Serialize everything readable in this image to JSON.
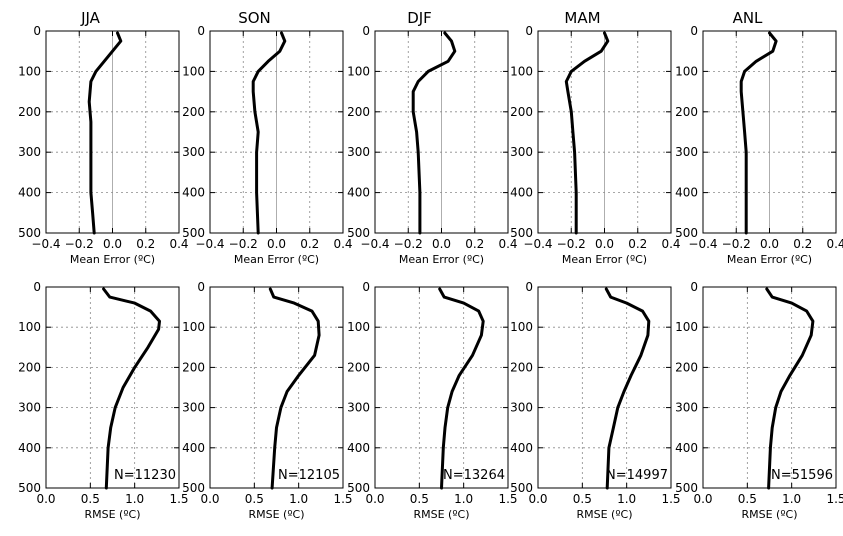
{
  "chart_data": [
    {
      "type": "line",
      "title": "JJA",
      "xlabel": "Mean Error (ºC)",
      "xlim": [
        -0.4,
        0.4
      ],
      "ylim": [
        0,
        500
      ],
      "y_inverted": true,
      "xticks": [
        "−0.4",
        "−0.2",
        "0.0",
        "0.2",
        "0.4"
      ],
      "yticks": [
        "0",
        "100",
        "200",
        "300",
        "400",
        "500"
      ],
      "grid": true,
      "series": [
        {
          "x": [
            0.03,
            0.05,
            0.0,
            -0.05,
            -0.1,
            -0.13,
            -0.14,
            -0.13,
            -0.13,
            -0.13,
            -0.12,
            -0.11
          ],
          "y": [
            5,
            25,
            50,
            75,
            100,
            125,
            175,
            225,
            300,
            400,
            450,
            500
          ]
        }
      ]
    },
    {
      "type": "line",
      "title": "SON",
      "xlabel": "Mean Error (ºC)",
      "xlim": [
        -0.4,
        0.4
      ],
      "ylim": [
        0,
        500
      ],
      "y_inverted": true,
      "xticks": [
        "−0.4",
        "−0.2",
        "0.0",
        "0.2",
        "0.4"
      ],
      "yticks": [
        "0",
        "100",
        "200",
        "300",
        "400",
        "500"
      ],
      "grid": true,
      "series": [
        {
          "x": [
            0.03,
            0.05,
            0.02,
            -0.05,
            -0.11,
            -0.14,
            -0.14,
            -0.13,
            -0.11,
            -0.12,
            -0.12,
            -0.11
          ],
          "y": [
            5,
            25,
            50,
            75,
            100,
            125,
            150,
            200,
            250,
            300,
            400,
            500
          ]
        }
      ]
    },
    {
      "type": "line",
      "title": "DJF",
      "xlabel": "Mean Error (ºC)",
      "xlim": [
        -0.4,
        0.4
      ],
      "ylim": [
        0,
        500
      ],
      "y_inverted": true,
      "xticks": [
        "−0.4",
        "−0.2",
        "0.0",
        "0.2",
        "0.4"
      ],
      "yticks": [
        "0",
        "100",
        "200",
        "300",
        "400",
        "500"
      ],
      "grid": true,
      "series": [
        {
          "x": [
            0.02,
            0.06,
            0.08,
            0.04,
            -0.08,
            -0.14,
            -0.17,
            -0.17,
            -0.15,
            -0.14,
            -0.13,
            -0.13
          ],
          "y": [
            5,
            25,
            50,
            75,
            100,
            125,
            150,
            200,
            250,
            300,
            400,
            500
          ]
        }
      ]
    },
    {
      "type": "line",
      "title": "MAM",
      "xlabel": "Mean Error (ºC)",
      "xlim": [
        -0.4,
        0.4
      ],
      "ylim": [
        0,
        500
      ],
      "y_inverted": true,
      "xticks": [
        "−0.4",
        "−0.2",
        "0.0",
        "0.2",
        "0.4"
      ],
      "yticks": [
        "0",
        "100",
        "200",
        "300",
        "400",
        "500"
      ],
      "grid": true,
      "series": [
        {
          "x": [
            0.0,
            0.02,
            -0.02,
            -0.12,
            -0.2,
            -0.23,
            -0.22,
            -0.2,
            -0.19,
            -0.18,
            -0.17,
            -0.17
          ],
          "y": [
            5,
            25,
            50,
            75,
            100,
            125,
            150,
            200,
            250,
            300,
            400,
            500
          ]
        }
      ]
    },
    {
      "type": "line",
      "title": "ANL",
      "xlabel": "Mean Error (ºC)",
      "xlim": [
        -0.4,
        0.4
      ],
      "ylim": [
        0,
        500
      ],
      "y_inverted": true,
      "xticks": [
        "−0.4",
        "−0.2",
        "0.0",
        "0.2",
        "0.4"
      ],
      "yticks": [
        "0",
        "100",
        "200",
        "300",
        "400",
        "500"
      ],
      "grid": true,
      "series": [
        {
          "x": [
            0.0,
            0.04,
            0.02,
            -0.08,
            -0.15,
            -0.17,
            -0.17,
            -0.16,
            -0.15,
            -0.14,
            -0.14,
            -0.14
          ],
          "y": [
            5,
            25,
            50,
            75,
            100,
            125,
            150,
            200,
            250,
            300,
            400,
            500
          ]
        }
      ]
    },
    {
      "type": "line",
      "title": "",
      "xlabel": "RMSE (ºC)",
      "xlim": [
        0.0,
        1.5
      ],
      "ylim": [
        0,
        500
      ],
      "y_inverted": true,
      "xticks": [
        "0.0",
        "0.5",
        "1.0",
        "1.5"
      ],
      "yticks": [
        "0",
        "100",
        "200",
        "300",
        "400",
        "500"
      ],
      "annotation": "N=11230",
      "grid": true,
      "series": [
        {
          "x": [
            0.65,
            0.72,
            1.0,
            1.18,
            1.28,
            1.27,
            1.15,
            1.0,
            0.87,
            0.78,
            0.73,
            0.7,
            0.68
          ],
          "y": [
            5,
            25,
            40,
            60,
            85,
            105,
            150,
            200,
            250,
            300,
            350,
            400,
            500
          ]
        }
      ]
    },
    {
      "type": "line",
      "title": "",
      "xlabel": "RMSE (ºC)",
      "xlim": [
        0.0,
        1.5
      ],
      "ylim": [
        0,
        500
      ],
      "y_inverted": true,
      "xticks": [
        "0.0",
        "0.5",
        "1.0",
        "1.5"
      ],
      "yticks": [
        "0",
        "100",
        "200",
        "300",
        "400",
        "500"
      ],
      "annotation": "N=12105",
      "grid": true,
      "series": [
        {
          "x": [
            0.68,
            0.72,
            0.95,
            1.15,
            1.22,
            1.23,
            1.18,
            1.0,
            0.87,
            0.8,
            0.75,
            0.73,
            0.7
          ],
          "y": [
            5,
            25,
            40,
            60,
            85,
            120,
            170,
            220,
            260,
            300,
            350,
            400,
            500
          ]
        }
      ]
    },
    {
      "type": "line",
      "title": "",
      "xlabel": "RMSE (ºC)",
      "xlim": [
        0.0,
        1.5
      ],
      "ylim": [
        0,
        500
      ],
      "y_inverted": true,
      "xticks": [
        "0.0",
        "0.5",
        "1.0",
        "1.5"
      ],
      "yticks": [
        "0",
        "100",
        "200",
        "300",
        "400",
        "500"
      ],
      "annotation": "N=13264",
      "grid": true,
      "series": [
        {
          "x": [
            0.73,
            0.78,
            1.0,
            1.17,
            1.22,
            1.2,
            1.1,
            0.95,
            0.87,
            0.82,
            0.79,
            0.77,
            0.75
          ],
          "y": [
            5,
            25,
            40,
            60,
            85,
            120,
            170,
            220,
            260,
            300,
            350,
            400,
            500
          ]
        }
      ]
    },
    {
      "type": "line",
      "title": "",
      "xlabel": "RMSE (ºC)",
      "xlim": [
        0.0,
        1.5
      ],
      "ylim": [
        0,
        500
      ],
      "y_inverted": true,
      "xticks": [
        "0.0",
        "0.5",
        "1.0",
        "1.5"
      ],
      "yticks": [
        "0",
        "100",
        "200",
        "300",
        "400",
        "500"
      ],
      "annotation": "N=14997",
      "grid": true,
      "series": [
        {
          "x": [
            0.77,
            0.82,
            1.0,
            1.18,
            1.25,
            1.24,
            1.16,
            1.05,
            0.97,
            0.9,
            0.85,
            0.8,
            0.78
          ],
          "y": [
            5,
            25,
            40,
            60,
            85,
            120,
            170,
            220,
            260,
            300,
            350,
            400,
            500
          ]
        }
      ]
    },
    {
      "type": "line",
      "title": "",
      "xlabel": "RMSE (ºC)",
      "xlim": [
        0.0,
        1.5
      ],
      "ylim": [
        0,
        500
      ],
      "y_inverted": true,
      "xticks": [
        "0.0",
        "0.5",
        "1.0",
        "1.5"
      ],
      "yticks": [
        "0",
        "100",
        "200",
        "300",
        "400",
        "500"
      ],
      "annotation": "N=51596",
      "grid": true,
      "series": [
        {
          "x": [
            0.72,
            0.78,
            1.0,
            1.17,
            1.24,
            1.22,
            1.12,
            0.98,
            0.88,
            0.82,
            0.78,
            0.76,
            0.74
          ],
          "y": [
            5,
            25,
            40,
            60,
            85,
            120,
            170,
            220,
            260,
            300,
            350,
            400,
            500
          ]
        }
      ]
    }
  ]
}
